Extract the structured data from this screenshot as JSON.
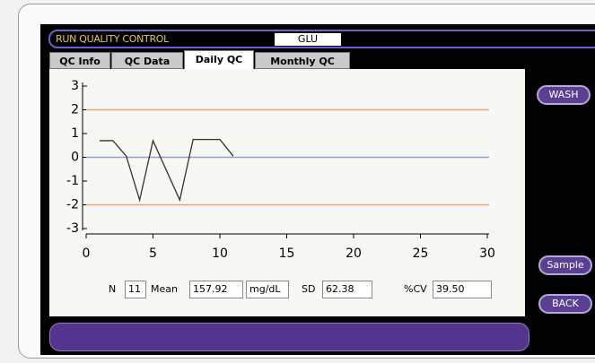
{
  "header": {
    "title": "RUN QUALITY CONTROL",
    "test": "GLU"
  },
  "tabs": [
    "QC Info",
    "QC Data",
    "Daily QC",
    "Monthly QC"
  ],
  "chart_data": {
    "type": "line",
    "x": [
      1,
      2,
      3,
      4,
      5,
      6,
      7,
      8,
      9,
      10,
      11
    ],
    "series": [
      {
        "name": "GLU",
        "color": "#333333",
        "values": [
          0.7,
          0.7,
          0.05,
          -1.8,
          0.7,
          -0.55,
          -1.8,
          0.75,
          0.75,
          0.75,
          0.05
        ]
      }
    ],
    "reference_lines": [
      {
        "value": 2,
        "color": "#f2a07b"
      },
      {
        "value": 0,
        "color": "#8f9fe0"
      },
      {
        "value": -2,
        "color": "#f2a07b"
      }
    ],
    "xlim": [
      0,
      30
    ],
    "xticks": [
      0,
      5,
      10,
      15,
      20,
      25,
      30
    ],
    "ylim": [
      -3,
      3
    ],
    "yticks": [
      3,
      2,
      1,
      0,
      -1,
      -2,
      -3
    ]
  },
  "stats": {
    "n_label": "N",
    "n": "11",
    "mean_label": "Mean",
    "mean": "157.92",
    "unit": "mg/dL",
    "sd_label": "SD",
    "sd": "62.38",
    "cv_label": "%CV",
    "cv": "39.50"
  },
  "buttons": {
    "wash": "WASH",
    "sample": "Sample",
    "back": "BACK"
  }
}
